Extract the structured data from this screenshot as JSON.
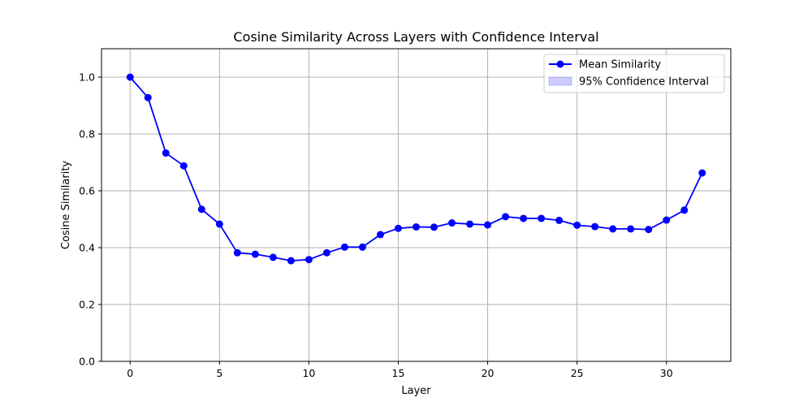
{
  "chart_data": {
    "type": "line",
    "title": "Cosine Similarity Across Layers with Confidence Interval",
    "xlabel": "Layer",
    "ylabel": "Cosine Similarity",
    "xlim": [
      -1.6,
      33.6
    ],
    "ylim": [
      0.0,
      1.1
    ],
    "x_ticks": [
      0,
      5,
      10,
      15,
      20,
      25,
      30
    ],
    "y_ticks": [
      0.0,
      0.2,
      0.4,
      0.6,
      0.8,
      1.0
    ],
    "x_tick_labels": [
      "0",
      "5",
      "10",
      "15",
      "20",
      "25",
      "30"
    ],
    "y_tick_labels": [
      "0.0",
      "0.2",
      "0.4",
      "0.6",
      "0.8",
      "1.0"
    ],
    "grid": true,
    "legend_position": "top-right",
    "x": [
      0,
      1,
      2,
      3,
      4,
      5,
      6,
      7,
      8,
      9,
      10,
      11,
      12,
      13,
      14,
      15,
      16,
      17,
      18,
      19,
      20,
      21,
      22,
      23,
      24,
      25,
      26,
      27,
      28,
      29,
      30,
      31,
      32
    ],
    "series": [
      {
        "name": "Mean Similarity",
        "color": "#0000ff",
        "marker": "circle",
        "values": [
          1.0,
          0.928,
          0.733,
          0.688,
          0.535,
          0.483,
          0.382,
          0.377,
          0.366,
          0.354,
          0.358,
          0.382,
          0.402,
          0.402,
          0.446,
          0.468,
          0.473,
          0.472,
          0.487,
          0.483,
          0.48,
          0.509,
          0.503,
          0.503,
          0.496,
          0.479,
          0.474,
          0.466,
          0.466,
          0.464,
          0.497,
          0.532,
          0.663
        ]
      }
    ],
    "confidence_interval": {
      "name": "95% Confidence Interval",
      "color": "#0000ff",
      "opacity": 0.2
    }
  }
}
